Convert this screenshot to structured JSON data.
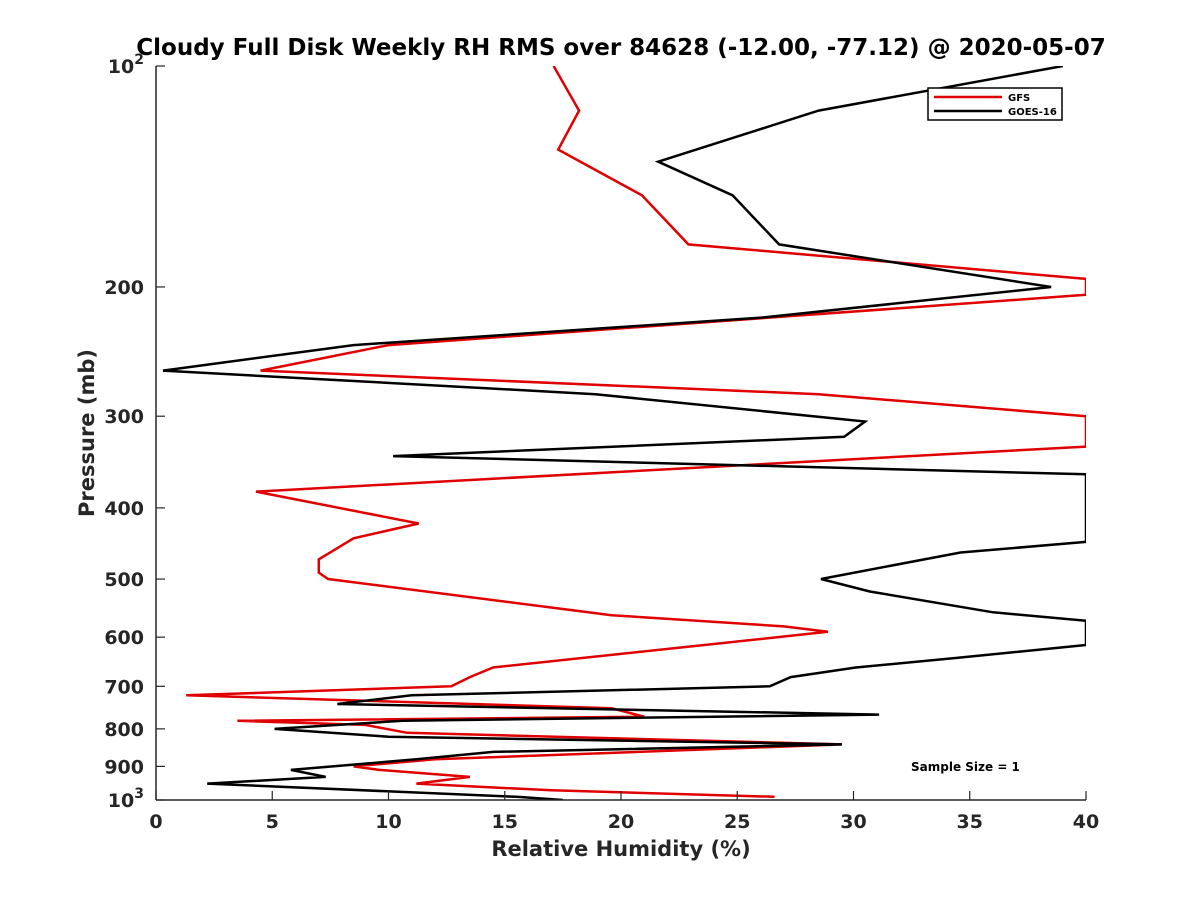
{
  "chart_data": {
    "type": "line",
    "orientation": "vertical-profile",
    "title": "Cloudy Full Disk Weekly RH RMS over 84628 (-12.00, -77.12) @ 2020-05-07",
    "xlabel": "Relative Humidity (%)",
    "ylabel": "Pressure (mb)",
    "xlim": [
      0,
      40
    ],
    "ylim": [
      100,
      1000
    ],
    "yscale": "log",
    "y_reversed": true,
    "grid": false,
    "legend_position": "top-right",
    "x_ticks": [
      "0",
      "5",
      "10",
      "15",
      "20",
      "25",
      "30",
      "35",
      "40"
    ],
    "y_ticks": [
      {
        "value": 100,
        "base": "10",
        "exp": "2"
      },
      {
        "value": 200,
        "label": "200"
      },
      {
        "value": 300,
        "label": "300"
      },
      {
        "value": 400,
        "label": "400"
      },
      {
        "value": 500,
        "label": "500"
      },
      {
        "value": 600,
        "label": "600"
      },
      {
        "value": 700,
        "label": "700"
      },
      {
        "value": 800,
        "label": "800"
      },
      {
        "value": 900,
        "label": "900"
      },
      {
        "value": 1000,
        "base": "10",
        "exp": "3"
      }
    ],
    "annotation": "Sample Size = 1",
    "series": [
      {
        "name": "GFS",
        "color": "#e00000",
        "points": [
          [
            17.1,
            100
          ],
          [
            18.2,
            115
          ],
          [
            17.3,
            130
          ],
          [
            20.9,
            150
          ],
          [
            22.9,
            175
          ],
          [
            40,
            195
          ],
          [
            40,
            205
          ],
          [
            10,
            240
          ],
          [
            4.5,
            260
          ],
          [
            28.5,
            280
          ],
          [
            40,
            300
          ],
          [
            40,
            330
          ],
          [
            4.3,
            380
          ],
          [
            11.3,
            420
          ],
          [
            8.5,
            440
          ],
          [
            7.0,
            470
          ],
          [
            7.0,
            490
          ],
          [
            7.4,
            500
          ],
          [
            19.6,
            560
          ],
          [
            27.0,
            580
          ],
          [
            28.9,
            590
          ],
          [
            14.5,
            660
          ],
          [
            13.5,
            680
          ],
          [
            12.7,
            700
          ],
          [
            1.3,
            720
          ],
          [
            19.6,
            750
          ],
          [
            21.0,
            770
          ],
          [
            3.5,
            780
          ],
          [
            9.0,
            790
          ],
          [
            10.8,
            810
          ],
          [
            29.5,
            840
          ],
          [
            12.0,
            880
          ],
          [
            8.5,
            900
          ],
          [
            9.6,
            910
          ],
          [
            13.5,
            930
          ],
          [
            11.2,
            950
          ],
          [
            17.0,
            970
          ],
          [
            26.6,
            990
          ]
        ]
      },
      {
        "name": "GOES-16",
        "color": "#000000",
        "points": [
          [
            39.0,
            100
          ],
          [
            28.5,
            115
          ],
          [
            21.6,
            135
          ],
          [
            24.8,
            150
          ],
          [
            26.8,
            175
          ],
          [
            38.5,
            200
          ],
          [
            26.2,
            220
          ],
          [
            8.5,
            240
          ],
          [
            0.3,
            260
          ],
          [
            18.9,
            280
          ],
          [
            30.5,
            305
          ],
          [
            29.6,
            320
          ],
          [
            10.2,
            340
          ],
          [
            40,
            360
          ],
          [
            40,
            445
          ],
          [
            34.6,
            460
          ],
          [
            28.6,
            500
          ],
          [
            30.7,
            520
          ],
          [
            36.0,
            555
          ],
          [
            40,
            570
          ],
          [
            40,
            615
          ],
          [
            34.5,
            640
          ],
          [
            30.1,
            660
          ],
          [
            27.3,
            680
          ],
          [
            26.4,
            700
          ],
          [
            11.0,
            720
          ],
          [
            7.8,
            740
          ],
          [
            31.1,
            765
          ],
          [
            10.6,
            780
          ],
          [
            5.1,
            800
          ],
          [
            10.0,
            820
          ],
          [
            29.5,
            840
          ],
          [
            14.5,
            860
          ],
          [
            11.2,
            880
          ],
          [
            5.8,
            910
          ],
          [
            7.3,
            930
          ],
          [
            2.2,
            950
          ],
          [
            15.5,
            990
          ],
          [
            17.5,
            1000
          ]
        ]
      }
    ]
  }
}
